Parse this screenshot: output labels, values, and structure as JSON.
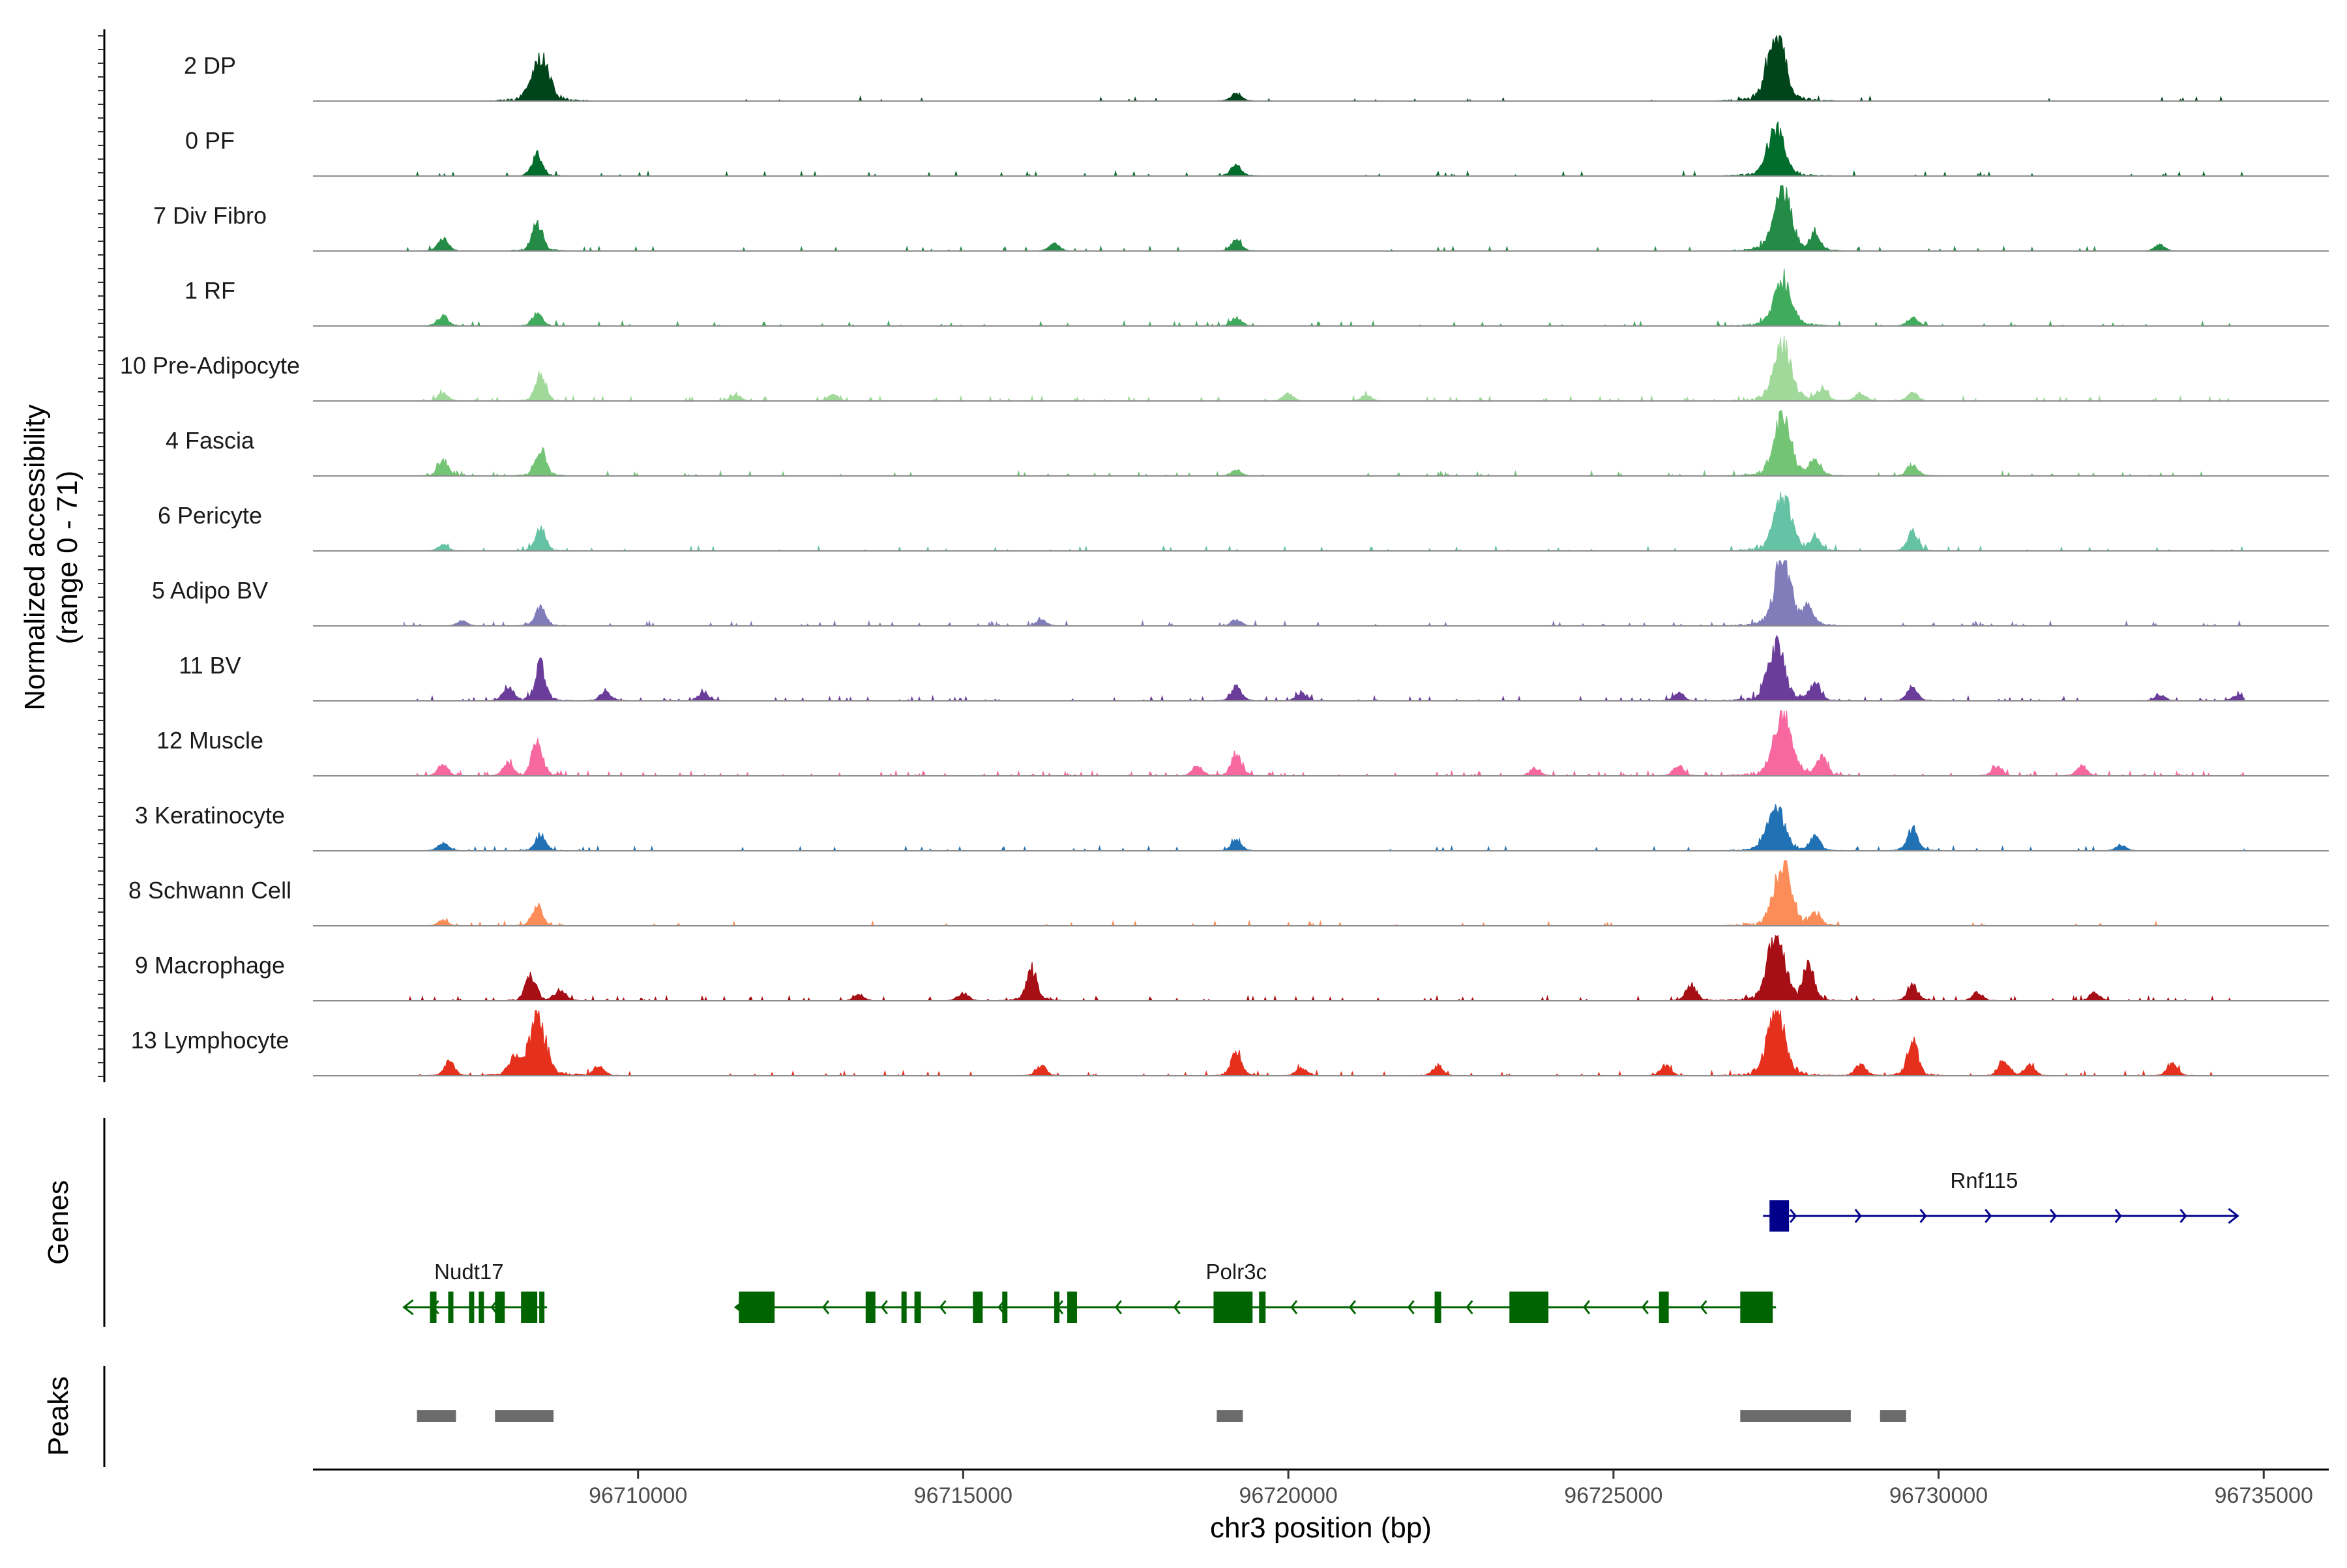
{
  "chart_data": {
    "type": "area",
    "title": "",
    "ylabel_line1": "Normalized accessibility",
    "ylabel_line2": "(range 0 - 71)",
    "xlabel": "chr3 position (bp)",
    "xlim": [
      96705000,
      96736000
    ],
    "ylim": [
      0,
      71
    ],
    "x_ticks": [
      96710000,
      96715000,
      96720000,
      96725000,
      96730000,
      96735000
    ],
    "x_tick_labels": [
      "96710000",
      "96715000",
      "96720000",
      "96725000",
      "96730000",
      "96735000"
    ],
    "tracks": [
      {
        "name": "2 DP",
        "color": "#00441b",
        "peaks": [
          [
            96708500,
            46
          ],
          [
            96727500,
            70
          ],
          [
            96719200,
            8
          ]
        ],
        "noise": 0.02
      },
      {
        "name": "0 PF",
        "color": "#006d2c",
        "peaks": [
          [
            96708450,
            22
          ],
          [
            96727500,
            48
          ],
          [
            96719200,
            11
          ]
        ],
        "noise": 0.03
      },
      {
        "name": "7 Div Fibro",
        "color": "#238b45",
        "peaks": [
          [
            96708450,
            28
          ],
          [
            96727600,
            64
          ],
          [
            96707000,
            12
          ],
          [
            96719200,
            10
          ],
          [
            96728100,
            16
          ],
          [
            96716400,
            7
          ],
          [
            96733400,
            6
          ]
        ],
        "noise": 0.05
      },
      {
        "name": "1 RF",
        "color": "#41ab5d",
        "peaks": [
          [
            96708450,
            12
          ],
          [
            96727600,
            48
          ],
          [
            96707000,
            10
          ],
          [
            96719200,
            8
          ],
          [
            96729600,
            8
          ]
        ],
        "noise": 0.04
      },
      {
        "name": "10 Pre-Adipocyte",
        "color": "#a1d99b",
        "peaks": [
          [
            96708500,
            26
          ],
          [
            96727600,
            58
          ],
          [
            96707000,
            8
          ],
          [
            96711500,
            6
          ],
          [
            96713000,
            6
          ],
          [
            96720000,
            7
          ],
          [
            96721200,
            6
          ],
          [
            96728200,
            12
          ],
          [
            96729600,
            8
          ],
          [
            96728800,
            8
          ]
        ],
        "noise": 0.06
      },
      {
        "name": "4 Fascia",
        "color": "#74c476",
        "peaks": [
          [
            96708500,
            28
          ],
          [
            96727600,
            58
          ],
          [
            96707000,
            16
          ],
          [
            96719200,
            6
          ],
          [
            96728100,
            16
          ],
          [
            96729600,
            12
          ]
        ],
        "noise": 0.05
      },
      {
        "name": "6 Pericyte",
        "color": "#66c2a4",
        "peaks": [
          [
            96708500,
            22
          ],
          [
            96727600,
            58
          ],
          [
            96729600,
            20
          ],
          [
            96728100,
            12
          ],
          [
            96707000,
            6
          ]
        ],
        "noise": 0.04
      },
      {
        "name": "5 Adipo BV",
        "color": "#807dba",
        "peaks": [
          [
            96708500,
            18
          ],
          [
            96727600,
            66
          ],
          [
            96728000,
            18
          ],
          [
            96716200,
            6
          ],
          [
            96719200,
            6
          ],
          [
            96707300,
            5
          ]
        ],
        "noise": 0.05
      },
      {
        "name": "11 BV",
        "color": "#6a3d9a",
        "peaks": [
          [
            96708500,
            36
          ],
          [
            96727500,
            56
          ],
          [
            96708000,
            14
          ],
          [
            96709500,
            10
          ],
          [
            96711000,
            8
          ],
          [
            96719200,
            14
          ],
          [
            96720200,
            8
          ],
          [
            96726000,
            8
          ],
          [
            96728100,
            18
          ],
          [
            96729600,
            14
          ],
          [
            96733400,
            6
          ],
          [
            96734600,
            6
          ]
        ],
        "noise": 0.07
      },
      {
        "name": "12 Muscle",
        "color": "#f768a1",
        "peaks": [
          [
            96708450,
            36
          ],
          [
            96727600,
            70
          ],
          [
            96707000,
            12
          ],
          [
            96708000,
            12
          ],
          [
            96719200,
            22
          ],
          [
            96718600,
            10
          ],
          [
            96723800,
            8
          ],
          [
            96726000,
            10
          ],
          [
            96728200,
            18
          ],
          [
            96730900,
            10
          ],
          [
            96732200,
            10
          ]
        ],
        "noise": 0.08
      },
      {
        "name": "3 Keratinocyte",
        "color": "#2171b5",
        "peaks": [
          [
            96708500,
            16
          ],
          [
            96727500,
            44
          ],
          [
            96729600,
            22
          ],
          [
            96707000,
            8
          ],
          [
            96719200,
            10
          ],
          [
            96728100,
            14
          ],
          [
            96732800,
            6
          ]
        ],
        "noise": 0.05
      },
      {
        "name": "8 Schwann Cell",
        "color": "#fc8d59",
        "peaks": [
          [
            96708450,
            20
          ],
          [
            96727600,
            66
          ],
          [
            96728100,
            12
          ],
          [
            96707000,
            5
          ]
        ],
        "noise": 0.04
      },
      {
        "name": "9 Macrophage",
        "color": "#a50f15",
        "peaks": [
          [
            96708350,
            26
          ],
          [
            96716050,
            34
          ],
          [
            96727500,
            68
          ],
          [
            96728000,
            36
          ],
          [
            96726200,
            16
          ],
          [
            96729600,
            16
          ],
          [
            96708800,
            12
          ],
          [
            96715000,
            8
          ],
          [
            96713400,
            6
          ],
          [
            96730600,
            8
          ],
          [
            96732400,
            8
          ]
        ],
        "noise": 0.07
      },
      {
        "name": "13 Lymphocyte",
        "color": "#e6301e",
        "peaks": [
          [
            96708450,
            58
          ],
          [
            96727500,
            66
          ],
          [
            96729600,
            38
          ],
          [
            96719200,
            24
          ],
          [
            96708100,
            18
          ],
          [
            96707100,
            14
          ],
          [
            96709400,
            10
          ],
          [
            96716200,
            10
          ],
          [
            96720200,
            8
          ],
          [
            96722300,
            10
          ],
          [
            96725800,
            10
          ],
          [
            96728800,
            12
          ],
          [
            96731000,
            16
          ],
          [
            96731400,
            10
          ],
          [
            96733600,
            12
          ]
        ],
        "noise": 0.05
      }
    ],
    "genes_title": "Genes",
    "genes": [
      {
        "name": "Rnf115",
        "strand": "+",
        "start": 96727300,
        "end": 96734600,
        "color": "#00008b",
        "exons": [
          [
            96727400,
            96727700
          ]
        ],
        "label_x": 96730700,
        "row": 0
      },
      {
        "name": "Nudt17",
        "strand": "-",
        "start": 96706400,
        "end": 96708600,
        "color": "#006400",
        "exons": [
          [
            96706800,
            96706900
          ],
          [
            96707080,
            96707150
          ],
          [
            96707400,
            96707450
          ],
          [
            96707550,
            96707620
          ],
          [
            96707800,
            96707950
          ],
          [
            96708200,
            96708450
          ],
          [
            96708480,
            96708550
          ]
        ],
        "label_x": 96707400,
        "row": 1
      },
      {
        "name": "Polr3c",
        "strand": "-",
        "start": 96711500,
        "end": 96727500,
        "color": "#006400",
        "exons": [
          [
            96711550,
            96712100
          ],
          [
            96713500,
            96713650
          ],
          [
            96714050,
            96714100
          ],
          [
            96714250,
            96714350
          ],
          [
            96715150,
            96715300
          ],
          [
            96715600,
            96715650
          ],
          [
            96716400,
            96716450
          ],
          [
            96716600,
            96716750
          ],
          [
            96718850,
            96719450
          ],
          [
            96719550,
            96719650
          ],
          [
            96722250,
            96722350
          ],
          [
            96723400,
            96724000
          ],
          [
            96725700,
            96725850
          ],
          [
            96726950,
            96727450
          ]
        ],
        "label_x": 96719200,
        "row": 1
      }
    ],
    "peaks_title": "Peaks",
    "peak_color": "#6b6b6b",
    "peak_regions": [
      [
        96706600,
        96707200
      ],
      [
        96707800,
        96708700
      ],
      [
        96718900,
        96719300
      ],
      [
        96726950,
        96728650
      ],
      [
        96729100,
        96729500
      ]
    ]
  }
}
